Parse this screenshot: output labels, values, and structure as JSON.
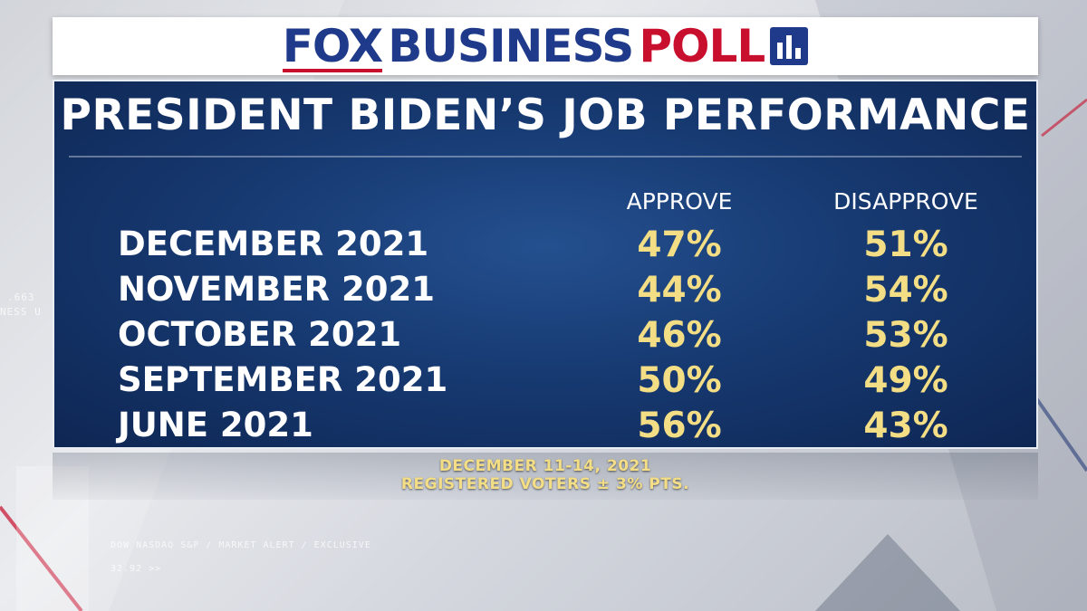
{
  "header": {
    "logo_fox": "FOX",
    "logo_business": "BUSINESS",
    "logo_poll": "POLL"
  },
  "background": {
    "ticker_line1": ".663",
    "ticker_line2": "NESS U",
    "ticker_line3": "DOW NASDAQ S&P  /  MARKET ALERT  /  EXCLUSIVE",
    "ticker_line4": "32.92 >>"
  },
  "chart_data": {
    "type": "table",
    "title": "PRESIDENT BIDEN’S JOB PERFORMANCE",
    "columns": [
      "APPROVE",
      "DISAPPROVE"
    ],
    "rows": [
      {
        "label": "DECEMBER 2021",
        "approve": "47%",
        "disapprove": "51%"
      },
      {
        "label": "NOVEMBER 2021",
        "approve": "44%",
        "disapprove": "54%"
      },
      {
        "label": "OCTOBER 2021",
        "approve": "46%",
        "disapprove": "53%"
      },
      {
        "label": "SEPTEMBER 2021",
        "approve": "50%",
        "disapprove": "49%"
      },
      {
        "label": "JUNE 2021",
        "approve": "56%",
        "disapprove": "43%"
      }
    ]
  },
  "footer": {
    "dates": "DECEMBER 11-14, 2021",
    "sample": "REGISTERED VOTERS ± 3% PTS."
  },
  "colors": {
    "panel_navy": "#173a72",
    "value_gold": "#f4de85",
    "brand_blue": "#1f3a8a",
    "brand_red": "#c8102e"
  }
}
